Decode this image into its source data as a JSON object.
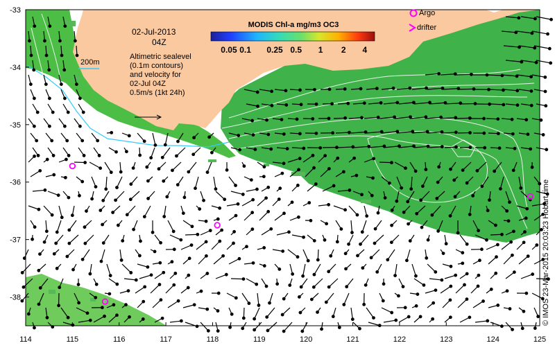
{
  "map": {
    "date_line1": "02-Jul-2013",
    "date_line2": "04Z",
    "isobath_label": "200m",
    "notes": [
      "Altimetric sealevel",
      "(0.1m contours)",
      "and velocity for",
      "02-Jul 04Z",
      "0.5m/s (1kt 24h)"
    ],
    "colorbar_title": "MODIS Chl-a mg/m3 OC3",
    "colorbar_ticks": [
      "0.05",
      "0.1",
      "0.25",
      "0.5",
      "1",
      "2",
      "4"
    ],
    "legend": {
      "argo": "Argo",
      "drifter": "drifter"
    },
    "credit": "© IMOS 23-Mar-2015 20:03:23 Hobart time",
    "x_ticks": [
      "114",
      "115",
      "116",
      "117",
      "118",
      "119",
      "120",
      "121",
      "122",
      "123",
      "124",
      "125"
    ],
    "y_ticks": [
      "-33",
      "-34",
      "-35",
      "-36",
      "-37",
      "-38"
    ],
    "argo_floats": [
      {
        "lon": 115.0,
        "lat": -35.72
      },
      {
        "lon": 118.1,
        "lat": -36.75
      },
      {
        "lon": 115.7,
        "lat": -38.08
      },
      {
        "lon": 124.8,
        "lat": -36.25
      }
    ],
    "colors": {
      "land": "#fbc99f",
      "chl_green": "#3cb84a",
      "argo": "#ff00ff",
      "contour": "#e6f5e6",
      "isobath": "#33ccff"
    }
  }
}
